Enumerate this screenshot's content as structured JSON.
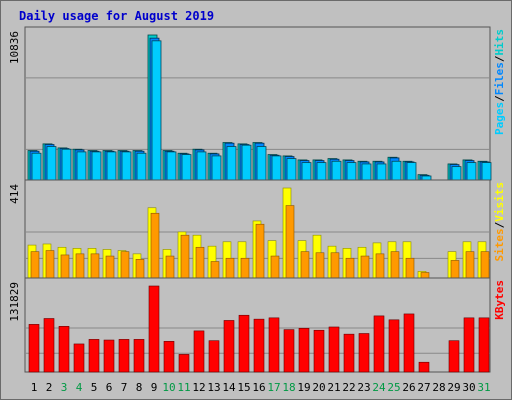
{
  "title": "Daily usage for August 2019",
  "colors": {
    "hits": "#00cccc",
    "files": "#0088ff",
    "pages": "#00ccff",
    "visits": "#ffff00",
    "sites": "#ff9900",
    "kbytes": "#ff0000",
    "weekend": "#009944",
    "weekday": "#000000",
    "bg": "#c0c0c0"
  },
  "chart_data": [
    {
      "type": "bar",
      "panel": "top",
      "ymax_label": "10836",
      "legend": [
        "Pages",
        "/",
        "Files",
        "/",
        "Hits"
      ],
      "categories": [
        "1",
        "2",
        "3",
        "4",
        "5",
        "6",
        "7",
        "8",
        "9",
        "10",
        "11",
        "12",
        "13",
        "14",
        "15",
        "16",
        "17",
        "18",
        "19",
        "20",
        "21",
        "22",
        "23",
        "24",
        "25",
        "26",
        "27",
        "28",
        "29",
        "30",
        "31"
      ],
      "series": [
        {
          "name": "Hits",
          "values": [
            2200,
            2700,
            2400,
            2300,
            2200,
            2200,
            2200,
            2200,
            10836,
            2200,
            2000,
            2300,
            2000,
            2800,
            2700,
            2800,
            1900,
            1800,
            1500,
            1500,
            1600,
            1500,
            1400,
            1400,
            1700,
            1400,
            400,
            0,
            1200,
            1500,
            1400
          ]
        },
        {
          "name": "Files",
          "values": [
            2150,
            2650,
            2350,
            2250,
            2150,
            2150,
            2150,
            2150,
            10600,
            2150,
            1950,
            2250,
            1950,
            2750,
            2650,
            2750,
            1850,
            1750,
            1450,
            1450,
            1550,
            1450,
            1350,
            1350,
            1650,
            1350,
            350,
            0,
            1150,
            1450,
            1350
          ]
        },
        {
          "name": "Pages",
          "values": [
            2000,
            2500,
            2300,
            2100,
            2100,
            2100,
            2100,
            2000,
            10400,
            2100,
            1900,
            2100,
            1800,
            2500,
            2600,
            2500,
            1800,
            1600,
            1300,
            1300,
            1400,
            1300,
            1200,
            1200,
            1400,
            1300,
            300,
            0,
            1000,
            1300,
            1300
          ]
        }
      ]
    },
    {
      "type": "bar",
      "panel": "middle",
      "ymax_label": "414",
      "legend": [
        "Sites",
        "/",
        "Visits"
      ],
      "categories": [
        "1",
        "2",
        "3",
        "4",
        "5",
        "6",
        "7",
        "8",
        "9",
        "10",
        "11",
        "12",
        "13",
        "14",
        "15",
        "16",
        "17",
        "18",
        "19",
        "20",
        "21",
        "22",
        "23",
        "24",
        "25",
        "26",
        "27",
        "28",
        "29",
        "30",
        "31"
      ],
      "series": [
        {
          "name": "Visits",
          "values": [
            150,
            155,
            140,
            135,
            135,
            130,
            125,
            110,
            320,
            130,
            210,
            195,
            145,
            165,
            165,
            260,
            170,
            410,
            170,
            195,
            145,
            135,
            140,
            160,
            165,
            165,
            30,
            0,
            120,
            165,
            165
          ]
        },
        {
          "name": "Sites",
          "values": [
            120,
            125,
            105,
            110,
            110,
            100,
            120,
            85,
            295,
            100,
            195,
            140,
            75,
            90,
            90,
            245,
            100,
            330,
            120,
            115,
            115,
            90,
            100,
            110,
            120,
            90,
            25,
            0,
            80,
            120,
            120
          ]
        }
      ]
    },
    {
      "type": "bar",
      "panel": "bottom",
      "ymax_label": "131829",
      "legend": [
        "KBytes"
      ],
      "categories": [
        "1",
        "2",
        "3",
        "4",
        "5",
        "6",
        "7",
        "8",
        "9",
        "10",
        "11",
        "12",
        "13",
        "14",
        "15",
        "16",
        "17",
        "18",
        "19",
        "20",
        "21",
        "22",
        "23",
        "24",
        "25",
        "26",
        "27",
        "28",
        "29",
        "30",
        "31"
      ],
      "series": [
        {
          "name": "KBytes",
          "values": [
            73000,
            82000,
            70000,
            43000,
            50000,
            49000,
            50000,
            50000,
            131829,
            47000,
            27000,
            63000,
            48000,
            79000,
            87000,
            81000,
            83000,
            65000,
            67000,
            64000,
            69000,
            58000,
            59000,
            86000,
            80000,
            89000,
            15000,
            0,
            48000,
            83000,
            83000
          ]
        }
      ]
    }
  ],
  "weekend_days": [
    "3",
    "4",
    "10",
    "11",
    "17",
    "18",
    "24",
    "25",
    "31"
  ]
}
